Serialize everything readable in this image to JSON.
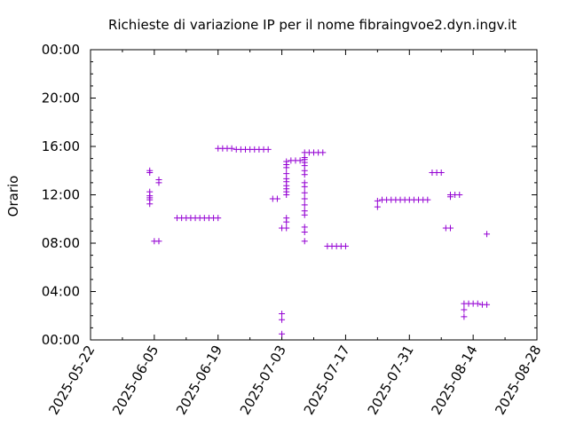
{
  "chart_data": {
    "type": "scatter",
    "title": "Richieste di variazione IP per il nome fibraingvoe2.dyn.ingv.it",
    "xlabel": "",
    "ylabel": "Orario",
    "x_ticks": [
      "2025-05-22",
      "2025-06-05",
      "2025-06-19",
      "2025-07-03",
      "2025-07-17",
      "2025-07-31",
      "2025-08-14",
      "2025-08-28"
    ],
    "y_ticks": [
      "00:00",
      "04:00",
      "08:00",
      "12:00",
      "16:00",
      "20:00",
      "00:00"
    ],
    "xlim": [
      "2025-05-22",
      "2025-08-28"
    ],
    "ylim_hours": [
      0,
      24
    ],
    "marker": "+",
    "color": "#9400d3",
    "grid": false,
    "points": [
      {
        "x": "2025-06-04",
        "y": "14:00"
      },
      {
        "x": "2025-06-04",
        "y": "13:50"
      },
      {
        "x": "2025-06-04",
        "y": "12:15"
      },
      {
        "x": "2025-06-04",
        "y": "11:55"
      },
      {
        "x": "2025-06-04",
        "y": "11:45"
      },
      {
        "x": "2025-06-04",
        "y": "11:35"
      },
      {
        "x": "2025-06-04",
        "y": "11:15"
      },
      {
        "x": "2025-06-05",
        "y": "08:10"
      },
      {
        "x": "2025-06-06",
        "y": "08:10"
      },
      {
        "x": "2025-06-06",
        "y": "13:15"
      },
      {
        "x": "2025-06-06",
        "y": "13:00"
      },
      {
        "x": "2025-06-10",
        "y": "10:05"
      },
      {
        "x": "2025-06-11",
        "y": "10:05"
      },
      {
        "x": "2025-06-12",
        "y": "10:05"
      },
      {
        "x": "2025-06-13",
        "y": "10:05"
      },
      {
        "x": "2025-06-14",
        "y": "10:05"
      },
      {
        "x": "2025-06-15",
        "y": "10:05"
      },
      {
        "x": "2025-06-16",
        "y": "10:05"
      },
      {
        "x": "2025-06-17",
        "y": "10:05"
      },
      {
        "x": "2025-06-18",
        "y": "10:05"
      },
      {
        "x": "2025-06-19",
        "y": "10:05"
      },
      {
        "x": "2025-06-19",
        "y": "15:50"
      },
      {
        "x": "2025-06-20",
        "y": "15:50"
      },
      {
        "x": "2025-06-21",
        "y": "15:50"
      },
      {
        "x": "2025-06-22",
        "y": "15:50"
      },
      {
        "x": "2025-06-23",
        "y": "15:45"
      },
      {
        "x": "2025-06-24",
        "y": "15:45"
      },
      {
        "x": "2025-06-25",
        "y": "15:45"
      },
      {
        "x": "2025-06-26",
        "y": "15:45"
      },
      {
        "x": "2025-06-27",
        "y": "15:45"
      },
      {
        "x": "2025-06-28",
        "y": "15:45"
      },
      {
        "x": "2025-06-29",
        "y": "15:45"
      },
      {
        "x": "2025-06-30",
        "y": "15:45"
      },
      {
        "x": "2025-07-01",
        "y": "11:40"
      },
      {
        "x": "2025-07-02",
        "y": "11:40"
      },
      {
        "x": "2025-07-03",
        "y": "09:15"
      },
      {
        "x": "2025-07-03",
        "y": "02:10"
      },
      {
        "x": "2025-07-03",
        "y": "01:40"
      },
      {
        "x": "2025-07-03",
        "y": "00:30"
      },
      {
        "x": "2025-07-04",
        "y": "14:45"
      },
      {
        "x": "2025-07-04",
        "y": "14:30"
      },
      {
        "x": "2025-07-04",
        "y": "14:15"
      },
      {
        "x": "2025-07-04",
        "y": "13:45"
      },
      {
        "x": "2025-07-04",
        "y": "13:20"
      },
      {
        "x": "2025-07-04",
        "y": "13:05"
      },
      {
        "x": "2025-07-04",
        "y": "12:45"
      },
      {
        "x": "2025-07-04",
        "y": "12:30"
      },
      {
        "x": "2025-07-04",
        "y": "12:15"
      },
      {
        "x": "2025-07-04",
        "y": "12:00"
      },
      {
        "x": "2025-07-04",
        "y": "10:05"
      },
      {
        "x": "2025-07-04",
        "y": "09:45"
      },
      {
        "x": "2025-07-04",
        "y": "09:15"
      },
      {
        "x": "2025-07-05",
        "y": "14:50"
      },
      {
        "x": "2025-07-06",
        "y": "14:50"
      },
      {
        "x": "2025-07-07",
        "y": "14:50"
      },
      {
        "x": "2025-07-08",
        "y": "15:30"
      },
      {
        "x": "2025-07-08",
        "y": "15:05"
      },
      {
        "x": "2025-07-08",
        "y": "14:55"
      },
      {
        "x": "2025-07-08",
        "y": "14:40"
      },
      {
        "x": "2025-07-08",
        "y": "14:25"
      },
      {
        "x": "2025-07-08",
        "y": "14:00"
      },
      {
        "x": "2025-07-08",
        "y": "13:40"
      },
      {
        "x": "2025-07-08",
        "y": "13:00"
      },
      {
        "x": "2025-07-08",
        "y": "12:40"
      },
      {
        "x": "2025-07-08",
        "y": "12:10"
      },
      {
        "x": "2025-07-08",
        "y": "11:40"
      },
      {
        "x": "2025-07-08",
        "y": "11:10"
      },
      {
        "x": "2025-07-08",
        "y": "10:40"
      },
      {
        "x": "2025-07-08",
        "y": "10:20"
      },
      {
        "x": "2025-07-08",
        "y": "09:20"
      },
      {
        "x": "2025-07-08",
        "y": "08:55"
      },
      {
        "x": "2025-07-08",
        "y": "08:10"
      },
      {
        "x": "2025-07-09",
        "y": "15:30"
      },
      {
        "x": "2025-07-10",
        "y": "15:30"
      },
      {
        "x": "2025-07-11",
        "y": "15:30"
      },
      {
        "x": "2025-07-12",
        "y": "15:30"
      },
      {
        "x": "2025-07-13",
        "y": "07:45"
      },
      {
        "x": "2025-07-14",
        "y": "07:45"
      },
      {
        "x": "2025-07-15",
        "y": "07:45"
      },
      {
        "x": "2025-07-16",
        "y": "07:45"
      },
      {
        "x": "2025-07-17",
        "y": "07:45"
      },
      {
        "x": "2025-07-24",
        "y": "11:30"
      },
      {
        "x": "2025-07-24",
        "y": "11:00"
      },
      {
        "x": "2025-07-25",
        "y": "11:35"
      },
      {
        "x": "2025-07-26",
        "y": "11:35"
      },
      {
        "x": "2025-07-27",
        "y": "11:35"
      },
      {
        "x": "2025-07-28",
        "y": "11:35"
      },
      {
        "x": "2025-07-29",
        "y": "11:35"
      },
      {
        "x": "2025-07-30",
        "y": "11:35"
      },
      {
        "x": "2025-07-31",
        "y": "11:35"
      },
      {
        "x": "2025-08-01",
        "y": "11:35"
      },
      {
        "x": "2025-08-02",
        "y": "11:35"
      },
      {
        "x": "2025-08-03",
        "y": "11:35"
      },
      {
        "x": "2025-08-04",
        "y": "11:35"
      },
      {
        "x": "2025-08-05",
        "y": "13:50"
      },
      {
        "x": "2025-08-06",
        "y": "13:50"
      },
      {
        "x": "2025-08-07",
        "y": "13:50"
      },
      {
        "x": "2025-08-08",
        "y": "09:15"
      },
      {
        "x": "2025-08-09",
        "y": "09:15"
      },
      {
        "x": "2025-08-09",
        "y": "12:00"
      },
      {
        "x": "2025-08-09",
        "y": "11:50"
      },
      {
        "x": "2025-08-10",
        "y": "12:00"
      },
      {
        "x": "2025-08-11",
        "y": "12:00"
      },
      {
        "x": "2025-08-12",
        "y": "03:00"
      },
      {
        "x": "2025-08-12",
        "y": "02:30"
      },
      {
        "x": "2025-08-12",
        "y": "01:55"
      },
      {
        "x": "2025-08-13",
        "y": "03:00"
      },
      {
        "x": "2025-08-14",
        "y": "03:00"
      },
      {
        "x": "2025-08-15",
        "y": "03:00"
      },
      {
        "x": "2025-08-16",
        "y": "02:55"
      },
      {
        "x": "2025-08-17",
        "y": "02:55"
      },
      {
        "x": "2025-08-17",
        "y": "08:45"
      }
    ]
  }
}
